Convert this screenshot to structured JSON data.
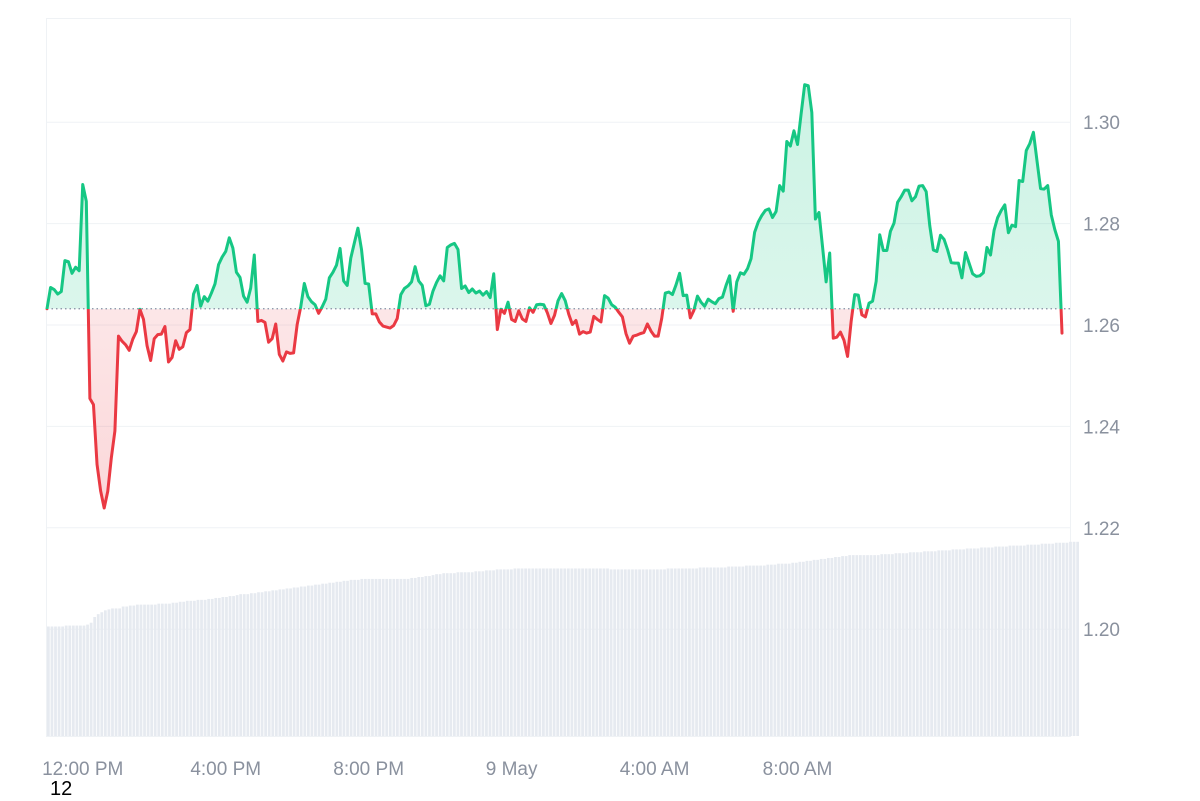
{
  "corner_label": "12",
  "chart_data": {
    "type": "area",
    "baseline_value": 1.2632,
    "ylim": [
      1.18,
      1.32
    ],
    "y_ticks": [
      1.2,
      1.22,
      1.24,
      1.26,
      1.28,
      1.3
    ],
    "y_tick_labels": [
      "1.20",
      "1.22",
      "1.24",
      "1.26",
      "1.28",
      "1.30"
    ],
    "x_tick_labels": [
      "12:00 PM",
      "4:00 PM",
      "8:00 PM",
      "9 May",
      "4:00 AM",
      "8:00 AM"
    ],
    "x_tick_index": [
      10,
      50,
      90,
      130,
      170,
      210
    ],
    "colors": {
      "up": "#16c784",
      "down": "#ea3943",
      "grid": "#eff2f5",
      "volume": "#e6eaf0",
      "baseline": "#858ca2"
    },
    "series": [
      {
        "values": [
          1.2632,
          1.2674,
          1.267,
          1.2661,
          1.2666,
          1.2727,
          1.2725,
          1.2702,
          1.2714,
          1.2707,
          1.2877,
          1.2844,
          1.2455,
          1.2443,
          1.2325,
          1.2273,
          1.2239,
          1.2272,
          1.2338,
          1.2391,
          1.2578,
          1.2568,
          1.2561,
          1.255,
          1.2572,
          1.2587,
          1.2631,
          1.2611,
          1.2559,
          1.253,
          1.2573,
          1.2581,
          1.2582,
          1.2597,
          1.2527,
          1.2536,
          1.2569,
          1.2552,
          1.2557,
          1.2585,
          1.2591,
          1.2661,
          1.2678,
          1.2637,
          1.2656,
          1.2647,
          1.2663,
          1.2681,
          1.2719,
          1.2734,
          1.2745,
          1.2772,
          1.2752,
          1.2704,
          1.2694,
          1.2657,
          1.2645,
          1.2673,
          1.2738,
          1.2607,
          1.2609,
          1.2605,
          1.2566,
          1.2573,
          1.2602,
          1.2542,
          1.2529,
          1.2547,
          1.2544,
          1.2545,
          1.2601,
          1.2636,
          1.2682,
          1.2656,
          1.2646,
          1.264,
          1.2623,
          1.2636,
          1.2651,
          1.2693,
          1.2704,
          1.2718,
          1.2751,
          1.2687,
          1.2678,
          1.2732,
          1.2762,
          1.2791,
          1.2749,
          1.2682,
          1.2681,
          1.2622,
          1.2622,
          1.2606,
          1.2598,
          1.2596,
          1.2594,
          1.2599,
          1.2613,
          1.266,
          1.2672,
          1.2677,
          1.2685,
          1.2715,
          1.2687,
          1.2678,
          1.2638,
          1.2641,
          1.2667,
          1.2684,
          1.2697,
          1.2687,
          1.2753,
          1.2758,
          1.2761,
          1.2749,
          1.2672,
          1.2677,
          1.2664,
          1.2671,
          1.2663,
          1.2667,
          1.2659,
          1.2666,
          1.2654,
          1.2701,
          1.2591,
          1.2631,
          1.2623,
          1.2645,
          1.2611,
          1.2607,
          1.2628,
          1.2612,
          1.2607,
          1.2634,
          1.2625,
          1.264,
          1.2641,
          1.264,
          1.2624,
          1.2603,
          1.2619,
          1.2648,
          1.2662,
          1.2648,
          1.2621,
          1.2601,
          1.2609,
          1.2582,
          1.2587,
          1.2584,
          1.2586,
          1.2617,
          1.2611,
          1.2606,
          1.2658,
          1.2653,
          1.264,
          1.2635,
          1.2625,
          1.2616,
          1.2583,
          1.2564,
          1.2578,
          1.258,
          1.2583,
          1.2585,
          1.2602,
          1.2588,
          1.2578,
          1.2578,
          1.2613,
          1.2663,
          1.2665,
          1.266,
          1.2679,
          1.2702,
          1.2658,
          1.2659,
          1.2614,
          1.2629,
          1.2657,
          1.2645,
          1.2637,
          1.2651,
          1.2646,
          1.2642,
          1.2652,
          1.2655,
          1.2678,
          1.2697,
          1.2627,
          1.2685,
          1.2703,
          1.27,
          1.2711,
          1.2731,
          1.2783,
          1.2803,
          1.2816,
          1.2826,
          1.2829,
          1.2812,
          1.2824,
          1.2875,
          1.2864,
          1.2962,
          1.2953,
          1.2983,
          1.2956,
          1.3016,
          1.3074,
          1.3072,
          1.3019,
          1.2809,
          1.2822,
          1.2754,
          1.2685,
          1.2742,
          1.2574,
          1.2576,
          1.2586,
          1.257,
          1.2538,
          1.2607,
          1.266,
          1.2659,
          1.262,
          1.2616,
          1.2643,
          1.2647,
          1.2686,
          1.2778,
          1.2747,
          1.2747,
          1.2785,
          1.2801,
          1.2842,
          1.2853,
          1.2866,
          1.2866,
          1.2845,
          1.2853,
          1.2874,
          1.2875,
          1.2863,
          1.2796,
          1.2748,
          1.2745,
          1.2777,
          1.2769,
          1.2748,
          1.2723,
          1.2722,
          1.2722,
          1.2693,
          1.2743,
          1.2722,
          1.2701,
          1.2696,
          1.2697,
          1.2703,
          1.2753,
          1.2738,
          1.2787,
          1.2812,
          1.2826,
          1.2837,
          1.2782,
          1.2797,
          1.2794,
          1.2885,
          1.2883,
          1.2944,
          1.2958,
          1.298,
          1.2924,
          1.2869,
          1.2868,
          1.2875,
          1.2817,
          1.2788,
          1.2765,
          1.2584
        ]
      }
    ],
    "volume": [
      0.115,
      0.115,
      0.115,
      0.115,
      0.115,
      0.116,
      0.116,
      0.116,
      0.116,
      0.116,
      0.116,
      0.117,
      0.119,
      0.125,
      0.128,
      0.13,
      0.132,
      0.133,
      0.134,
      0.134,
      0.134,
      0.136,
      0.136,
      0.137,
      0.137,
      0.138,
      0.138,
      0.138,
      0.138,
      0.138,
      0.138,
      0.139,
      0.139,
      0.139,
      0.139,
      0.14,
      0.14,
      0.141,
      0.141,
      0.142,
      0.142,
      0.142,
      0.143,
      0.143,
      0.143,
      0.144,
      0.144,
      0.145,
      0.145,
      0.146,
      0.146,
      0.147,
      0.147,
      0.148,
      0.149,
      0.149,
      0.149,
      0.15,
      0.15,
      0.151,
      0.151,
      0.152,
      0.152,
      0.153,
      0.153,
      0.154,
      0.154,
      0.155,
      0.155,
      0.156,
      0.156,
      0.157,
      0.157,
      0.158,
      0.158,
      0.159,
      0.159,
      0.16,
      0.16,
      0.161,
      0.161,
      0.162,
      0.162,
      0.163,
      0.163,
      0.164,
      0.164,
      0.164,
      0.165,
      0.165,
      0.165,
      0.165,
      0.165,
      0.165,
      0.165,
      0.165,
      0.165,
      0.165,
      0.165,
      0.165,
      0.165,
      0.165,
      0.166,
      0.166,
      0.167,
      0.167,
      0.168,
      0.168,
      0.169,
      0.17,
      0.17,
      0.171,
      0.171,
      0.171,
      0.171,
      0.172,
      0.172,
      0.172,
      0.172,
      0.172,
      0.173,
      0.173,
      0.173,
      0.174,
      0.174,
      0.174,
      0.175,
      0.175,
      0.175,
      0.175,
      0.175,
      0.176,
      0.176,
      0.176,
      0.176,
      0.176,
      0.176,
      0.176,
      0.176,
      0.176,
      0.176,
      0.176,
      0.176,
      0.176,
      0.176,
      0.176,
      0.176,
      0.176,
      0.176,
      0.176,
      0.176,
      0.176,
      0.176,
      0.176,
      0.176,
      0.176,
      0.176,
      0.176,
      0.175,
      0.175,
      0.175,
      0.175,
      0.175,
      0.175,
      0.175,
      0.175,
      0.175,
      0.175,
      0.175,
      0.175,
      0.175,
      0.175,
      0.175,
      0.175,
      0.176,
      0.176,
      0.176,
      0.176,
      0.176,
      0.176,
      0.176,
      0.176,
      0.176,
      0.177,
      0.177,
      0.177,
      0.177,
      0.177,
      0.177,
      0.177,
      0.177,
      0.178,
      0.178,
      0.178,
      0.178,
      0.178,
      0.179,
      0.179,
      0.179,
      0.179,
      0.179,
      0.179,
      0.18,
      0.18,
      0.18,
      0.181,
      0.181,
      0.181,
      0.181,
      0.182,
      0.182,
      0.183,
      0.183,
      0.184,
      0.184,
      0.185,
      0.185,
      0.186,
      0.186,
      0.187,
      0.187,
      0.188,
      0.188,
      0.189,
      0.189,
      0.19,
      0.19,
      0.19,
      0.19,
      0.19,
      0.19,
      0.19,
      0.19,
      0.19,
      0.191,
      0.191,
      0.191,
      0.191,
      0.192,
      0.192,
      0.192,
      0.192,
      0.193,
      0.193,
      0.193,
      0.193,
      0.194,
      0.194,
      0.194,
      0.194,
      0.195,
      0.195,
      0.195,
      0.195,
      0.196,
      0.196,
      0.196,
      0.196,
      0.197,
      0.197,
      0.197,
      0.197,
      0.198,
      0.198,
      0.198,
      0.198,
      0.199,
      0.199,
      0.199,
      0.199,
      0.2,
      0.2,
      0.2,
      0.2,
      0.2,
      0.201,
      0.201,
      0.201,
      0.201,
      0.202,
      0.202,
      0.202,
      0.202,
      0.203,
      0.203,
      0.203,
      0.203,
      0.204,
      0.204,
      0.204
    ]
  }
}
